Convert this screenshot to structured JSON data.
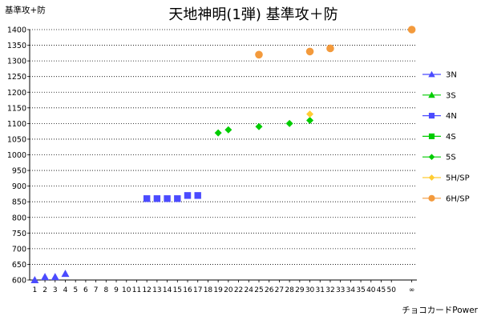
{
  "chart_data": {
    "type": "scatter",
    "title": "天地神明(1弾) 基準攻＋防",
    "ylabel": "基準攻+防",
    "xlabel": "チョコカードPower",
    "ylim": [
      600,
      1400
    ],
    "ystep": 50,
    "grid": true,
    "legend": "right",
    "categories": [
      "1",
      "2",
      "3",
      "4",
      "5",
      "6",
      "7",
      "8",
      "9",
      "10",
      "11",
      "12",
      "13",
      "14",
      "15",
      "16",
      "17",
      "18",
      "19",
      "20",
      "22",
      "24",
      "25",
      "26",
      "27",
      "28",
      "29",
      "30",
      "31",
      "32",
      "33",
      "34",
      "35",
      "40",
      "45",
      "50",
      "",
      "∞"
    ],
    "series": [
      {
        "name": "3N",
        "color": "#4b4bff",
        "marker": "triangle",
        "points": [
          [
            "1",
            600
          ],
          [
            "2",
            610
          ],
          [
            "3",
            610
          ],
          [
            "4",
            620
          ]
        ]
      },
      {
        "name": "3S",
        "color": "#00cc00",
        "marker": "triangle",
        "points": []
      },
      {
        "name": "4N",
        "color": "#4b4bff",
        "marker": "square",
        "points": [
          [
            "12",
            860
          ],
          [
            "13",
            860
          ],
          [
            "14",
            860
          ],
          [
            "15",
            860
          ],
          [
            "16",
            870
          ],
          [
            "17",
            870
          ]
        ]
      },
      {
        "name": "4S",
        "color": "#00cc00",
        "marker": "square",
        "points": []
      },
      {
        "name": "5S",
        "color": "#00cc00",
        "marker": "diamond",
        "points": [
          [
            "19",
            1070
          ],
          [
            "20",
            1080
          ],
          [
            "25",
            1090
          ],
          [
            "28",
            1100
          ],
          [
            "30",
            1110
          ]
        ]
      },
      {
        "name": "5H/SP",
        "color": "#ffcc33",
        "marker": "diamond",
        "points": [
          [
            "30",
            1130
          ]
        ]
      },
      {
        "name": "6H/SP",
        "color": "#f39a3c",
        "marker": "circle",
        "points": [
          [
            "25",
            1320
          ],
          [
            "30",
            1330
          ],
          [
            "32",
            1340
          ],
          [
            "∞",
            1400
          ]
        ]
      }
    ]
  }
}
